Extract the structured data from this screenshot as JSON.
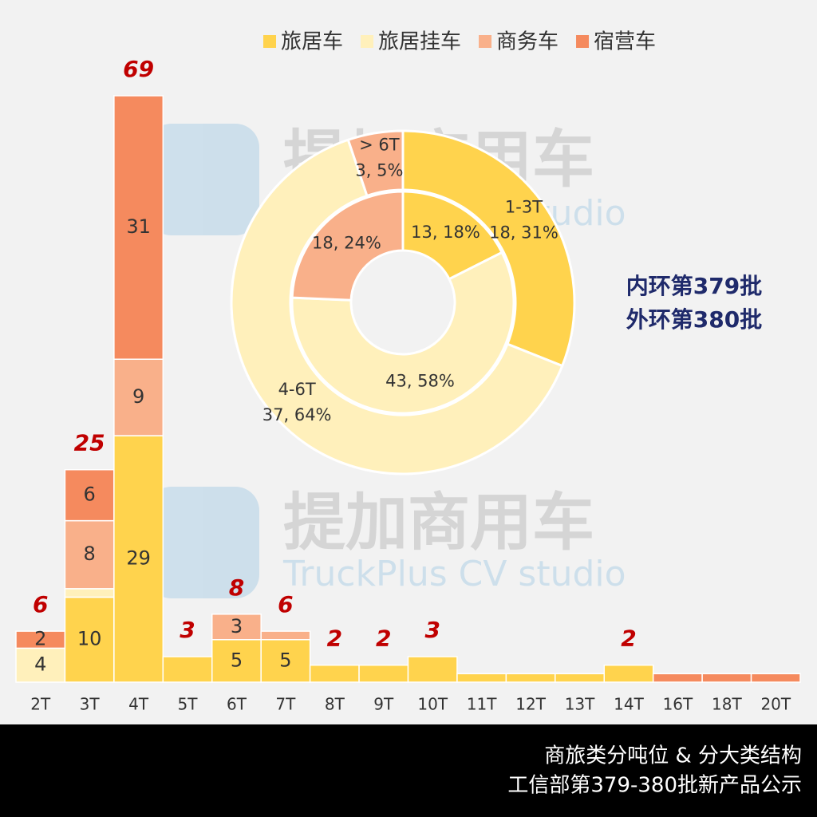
{
  "chart_data": [
    {
      "type": "bar",
      "stacked": true,
      "categories": [
        "2T",
        "3T",
        "4T",
        "5T",
        "6T",
        "7T",
        "8T",
        "9T",
        "10T",
        "11T",
        "12T",
        "13T",
        "14T",
        "16T",
        "18T",
        "20T"
      ],
      "series": [
        {
          "name": "旅居车",
          "color": "#FFD34D",
          "values": [
            0,
            10,
            29,
            3,
            5,
            5,
            2,
            2,
            3,
            1,
            1,
            1,
            2,
            0,
            0,
            0
          ]
        },
        {
          "name": "旅居挂车",
          "color": "#FFF0BB",
          "values": [
            4,
            1,
            0,
            0,
            0,
            0,
            0,
            0,
            0,
            0,
            0,
            0,
            0,
            0,
            0,
            0
          ]
        },
        {
          "name": "商务车",
          "color": "#F9B08A",
          "values": [
            0,
            8,
            9,
            0,
            3,
            1,
            0,
            0,
            0,
            0,
            0,
            0,
            0,
            0,
            0,
            0
          ]
        },
        {
          "name": "宿营车",
          "color": "#F58A5E",
          "values": [
            2,
            6,
            31,
            0,
            0,
            0,
            0,
            0,
            0,
            0,
            0,
            0,
            0,
            1,
            1,
            1
          ]
        }
      ],
      "totals": [
        6,
        25,
        69,
        3,
        8,
        6,
        2,
        2,
        3,
        null,
        null,
        null,
        2,
        null,
        null,
        null
      ],
      "ylim": [
        0,
        69
      ],
      "legend": "top"
    },
    {
      "type": "donut",
      "rings": [
        {
          "name": "内环第379批",
          "values": [
            13,
            43,
            18
          ],
          "value_labels": [
            "13, 18%",
            "43, 58%",
            "18, 24%"
          ],
          "colors": [
            "#FFD34D",
            "#FFF0BB",
            "#F9B08A"
          ]
        },
        {
          "name": "外环第380批",
          "categories": [
            "1-3T",
            "4-6T",
            "> 6T"
          ],
          "values": [
            18,
            37,
            3
          ],
          "value_labels": [
            "18, 31%",
            "37, 64%",
            "3, 5%"
          ],
          "colors": [
            "#FFD34D",
            "#FFF0BB",
            "#F9B08A"
          ]
        }
      ]
    }
  ],
  "watermark": {
    "brand": "提加商用车",
    "tagline": "TruckPlus CV studio"
  },
  "footer": {
    "line1": "商旅类分吨位 & 分大类结构",
    "line2": "工信部第379-380批新产品公示"
  }
}
